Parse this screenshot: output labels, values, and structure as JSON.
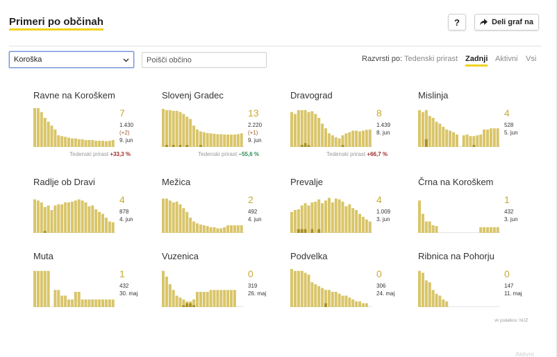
{
  "header": {
    "title": "Primeri po občinah",
    "help_label": "?",
    "share_label": "Deli graf na"
  },
  "filters": {
    "region_selected": "Koroška",
    "search_placeholder": "Poišči občino",
    "sort_label": "Razvrsti po:",
    "sort_options": [
      "Tedenski prirast",
      "Zadnji",
      "Aktivni",
      "Vsi"
    ],
    "sort_active": "Zadnji"
  },
  "colors": {
    "bar": "#d9c56a",
    "bar_dark": "#a8901f",
    "accent": "#f2d21b",
    "count": "#c8a931",
    "up": "#a0292a",
    "down": "#2e8b57"
  },
  "source_note": "vir podatkov: NIJZ",
  "cut_off_text": "Aktivni",
  "chart_data": [
    {
      "type": "bar",
      "name": "Ravne na Koroškem",
      "count": "7",
      "total": "1.430",
      "delta": "(+2)",
      "date": "9. jun",
      "trend_label": "Tedenski prirast",
      "trend_value": "+33,3 %",
      "trend_dir": "up",
      "values": [
        1.0,
        1.0,
        0.9,
        0.75,
        0.65,
        0.55,
        0.45,
        0.3,
        0.28,
        0.26,
        0.24,
        0.22,
        0.22,
        0.2,
        0.2,
        0.18,
        0.18,
        0.18,
        0.16,
        0.16,
        0.16,
        0.15,
        0.16,
        0.18
      ],
      "dark": [
        0,
        0,
        0,
        0,
        0,
        0,
        0,
        0,
        0,
        0,
        0,
        0,
        0,
        0,
        0,
        0,
        0,
        0,
        0,
        0,
        0,
        0,
        0,
        0
      ]
    },
    {
      "type": "bar",
      "name": "Slovenj Gradec",
      "count": "13",
      "total": "2.220",
      "delta": "(+1)",
      "date": "9. jun",
      "trend_label": "Tedenski prirast",
      "trend_value": "−55,6 %",
      "trend_dir": "down",
      "values": [
        0.98,
        0.95,
        0.95,
        0.93,
        0.93,
        0.9,
        0.85,
        0.78,
        0.72,
        0.55,
        0.45,
        0.4,
        0.38,
        0.36,
        0.35,
        0.34,
        0.33,
        0.33,
        0.32,
        0.32,
        0.32,
        0.32,
        0.33,
        0.35
      ],
      "dark": [
        0,
        0.05,
        0,
        0.05,
        0,
        0.05,
        0,
        0.05,
        0,
        0,
        0,
        0.05,
        0,
        0,
        0,
        0,
        0,
        0,
        0,
        0,
        0,
        0,
        0,
        0
      ]
    },
    {
      "type": "bar",
      "name": "Dravograd",
      "count": "8",
      "total": "1.439",
      "delta": "",
      "date": "8. jun",
      "trend_label": "Tedenski prirast",
      "trend_value": "+66,7 %",
      "trend_dir": "up",
      "values": [
        0.9,
        0.85,
        0.95,
        0.95,
        0.95,
        0.9,
        0.92,
        0.85,
        0.75,
        0.6,
        0.48,
        0.35,
        0.3,
        0.25,
        0.22,
        0.3,
        0.35,
        0.38,
        0.42,
        0.42,
        0.4,
        0.42,
        0.44,
        0.45
      ],
      "dark": [
        0,
        0,
        0,
        0.05,
        0.1,
        0.05,
        0,
        0,
        0,
        0,
        0,
        0,
        0,
        0,
        0,
        0.05,
        0,
        0,
        0,
        0,
        0,
        0,
        0,
        0
      ]
    },
    {
      "type": "bar",
      "name": "Mislinja",
      "count": "4",
      "total": "528",
      "delta": "",
      "date": "5. jun",
      "trend_label": "",
      "trend_value": "",
      "trend_dir": "",
      "values": [
        0.95,
        0.9,
        0.95,
        0.8,
        0.75,
        0.65,
        0.6,
        0.52,
        0.45,
        0.42,
        0.38,
        0.32,
        0.0,
        0.3,
        0.32,
        0.28,
        0.28,
        0.3,
        0.32,
        0.45,
        0.45,
        0.48,
        0.48,
        0.48
      ],
      "dark": [
        0,
        0,
        0.2,
        0,
        0,
        0,
        0,
        0,
        0,
        0,
        0,
        0,
        0,
        0,
        0,
        0,
        0.05,
        0,
        0,
        0,
        0,
        0,
        0,
        0
      ]
    },
    {
      "type": "bar",
      "name": "Radlje ob Dravi",
      "count": "4",
      "total": "878",
      "delta": "",
      "date": "4. jun",
      "trend_label": "",
      "trend_value": "",
      "trend_dir": "",
      "values": [
        0.88,
        0.85,
        0.8,
        0.68,
        0.72,
        0.6,
        0.72,
        0.75,
        0.75,
        0.8,
        0.8,
        0.82,
        0.85,
        0.88,
        0.85,
        0.8,
        0.7,
        0.72,
        0.62,
        0.55,
        0.5,
        0.4,
        0.3,
        0.28
      ],
      "dark": [
        0,
        0,
        0,
        0.05,
        0,
        0,
        0,
        0,
        0,
        0,
        0,
        0,
        0,
        0,
        0,
        0,
        0,
        0,
        0,
        0,
        0,
        0,
        0,
        0
      ]
    },
    {
      "type": "bar",
      "name": "Mežica",
      "count": "2",
      "total": "492",
      "delta": "",
      "date": "4. jun",
      "trend_label": "",
      "trend_value": "",
      "trend_dir": "",
      "values": [
        0.9,
        0.9,
        0.85,
        0.8,
        0.82,
        0.75,
        0.65,
        0.55,
        0.4,
        0.3,
        0.25,
        0.22,
        0.2,
        0.18,
        0.15,
        0.15,
        0.12,
        0.12,
        0.15,
        0.2,
        0.2,
        0.2,
        0.2,
        0.2
      ],
      "dark": [
        0,
        0,
        0,
        0,
        0,
        0,
        0,
        0,
        0,
        0,
        0,
        0,
        0,
        0,
        0,
        0,
        0,
        0,
        0,
        0,
        0,
        0,
        0,
        0
      ]
    },
    {
      "type": "bar",
      "name": "Prevalje",
      "count": "4",
      "total": "1.009",
      "delta": "",
      "date": "3. jun",
      "trend_label": "",
      "trend_value": "",
      "trend_dir": "",
      "values": [
        0.55,
        0.6,
        0.62,
        0.72,
        0.78,
        0.72,
        0.8,
        0.82,
        0.88,
        0.78,
        0.85,
        0.92,
        0.8,
        0.9,
        0.88,
        0.82,
        0.7,
        0.75,
        0.65,
        0.6,
        0.5,
        0.42,
        0.35,
        0.3
      ],
      "dark": [
        0,
        0,
        0.1,
        0.1,
        0.1,
        0,
        0.1,
        0,
        0.1,
        0,
        0,
        0,
        0,
        0,
        0,
        0,
        0,
        0,
        0,
        0,
        0,
        0,
        0,
        0
      ]
    },
    {
      "type": "bar",
      "name": "Črna na Koroškem",
      "count": "1",
      "total": "432",
      "delta": "",
      "date": "3. jun",
      "trend_label": "",
      "trend_value": "",
      "trend_dir": "",
      "values": [
        0.85,
        0.5,
        0.3,
        0.3,
        0.2,
        0.18,
        0.0,
        0.0,
        0.0,
        0.0,
        0.0,
        0.0,
        0.0,
        0.0,
        0.0,
        0.0,
        0.0,
        0.0,
        0.15,
        0.15,
        0.15,
        0.15,
        0.15,
        0.15
      ],
      "dark": [
        0,
        0,
        0,
        0,
        0,
        0,
        0,
        0,
        0,
        0,
        0,
        0,
        0,
        0,
        0,
        0,
        0,
        0,
        0,
        0,
        0,
        0,
        0,
        0
      ]
    },
    {
      "type": "bar",
      "name": "Muta",
      "count": "1",
      "total": "432",
      "delta": "",
      "date": "30. maj",
      "trend_label": "",
      "trend_value": "",
      "trend_dir": "",
      "values": [
        0.95,
        0.95,
        0.95,
        0.95,
        0.95,
        0.0,
        0.45,
        0.45,
        0.3,
        0.3,
        0.2,
        0.2,
        0.4,
        0.4,
        0.2,
        0.2,
        0.2,
        0.2,
        0.2,
        0.2,
        0.2,
        0.2,
        0.2,
        0.2
      ],
      "dark": [
        0,
        0,
        0,
        0,
        0,
        0,
        0,
        0,
        0,
        0,
        0,
        0,
        0,
        0,
        0,
        0,
        0,
        0,
        0,
        0,
        0,
        0,
        0,
        0
      ]
    },
    {
      "type": "bar",
      "name": "Vuzenica",
      "count": "0",
      "total": "319",
      "delta": "",
      "date": "26. maj",
      "trend_label": "",
      "trend_value": "",
      "trend_dir": "",
      "values": [
        0.95,
        0.8,
        0.6,
        0.45,
        0.3,
        0.25,
        0.2,
        0.15,
        0.15,
        0.2,
        0.4,
        0.4,
        0.4,
        0.4,
        0.45,
        0.45,
        0.45,
        0.45,
        0.45,
        0.45,
        0.45,
        0.45,
        0.0,
        0.0
      ],
      "dark": [
        0,
        0,
        0,
        0,
        0,
        0,
        0.05,
        0.1,
        0.1,
        0.05,
        0,
        0,
        0,
        0,
        0,
        0,
        0,
        0,
        0,
        0,
        0,
        0,
        0,
        0
      ]
    },
    {
      "type": "bar",
      "name": "Podvelka",
      "count": "0",
      "total": "306",
      "delta": "",
      "date": "24. maj",
      "trend_label": "",
      "trend_value": "",
      "trend_dir": "",
      "values": [
        1.0,
        0.95,
        0.95,
        0.95,
        0.9,
        0.85,
        0.65,
        0.6,
        0.55,
        0.5,
        0.45,
        0.45,
        0.4,
        0.4,
        0.35,
        0.3,
        0.3,
        0.25,
        0.2,
        0.15,
        0.15,
        0.1,
        0.1,
        0.0
      ],
      "dark": [
        0,
        0,
        0,
        0,
        0,
        0,
        0,
        0,
        0,
        0,
        0.1,
        0,
        0,
        0,
        0,
        0,
        0,
        0,
        0,
        0,
        0,
        0,
        0,
        0
      ]
    },
    {
      "type": "bar",
      "name": "Ribnica na Pohorju",
      "count": "0",
      "total": "147",
      "delta": "",
      "date": "11. maj",
      "trend_label": "",
      "trend_value": "",
      "trend_dir": "",
      "values": [
        0.95,
        0.9,
        0.7,
        0.65,
        0.45,
        0.35,
        0.3,
        0.2,
        0.15,
        0.0,
        0.0,
        0.0,
        0.0,
        0.0,
        0.0,
        0.0,
        0.0,
        0.0,
        0.0,
        0.0,
        0.0,
        0.0,
        0.0,
        0.0
      ],
      "dark": [
        0,
        0,
        0,
        0,
        0,
        0,
        0,
        0,
        0,
        0,
        0,
        0,
        0,
        0,
        0,
        0,
        0,
        0,
        0,
        0,
        0,
        0,
        0,
        0
      ]
    }
  ]
}
